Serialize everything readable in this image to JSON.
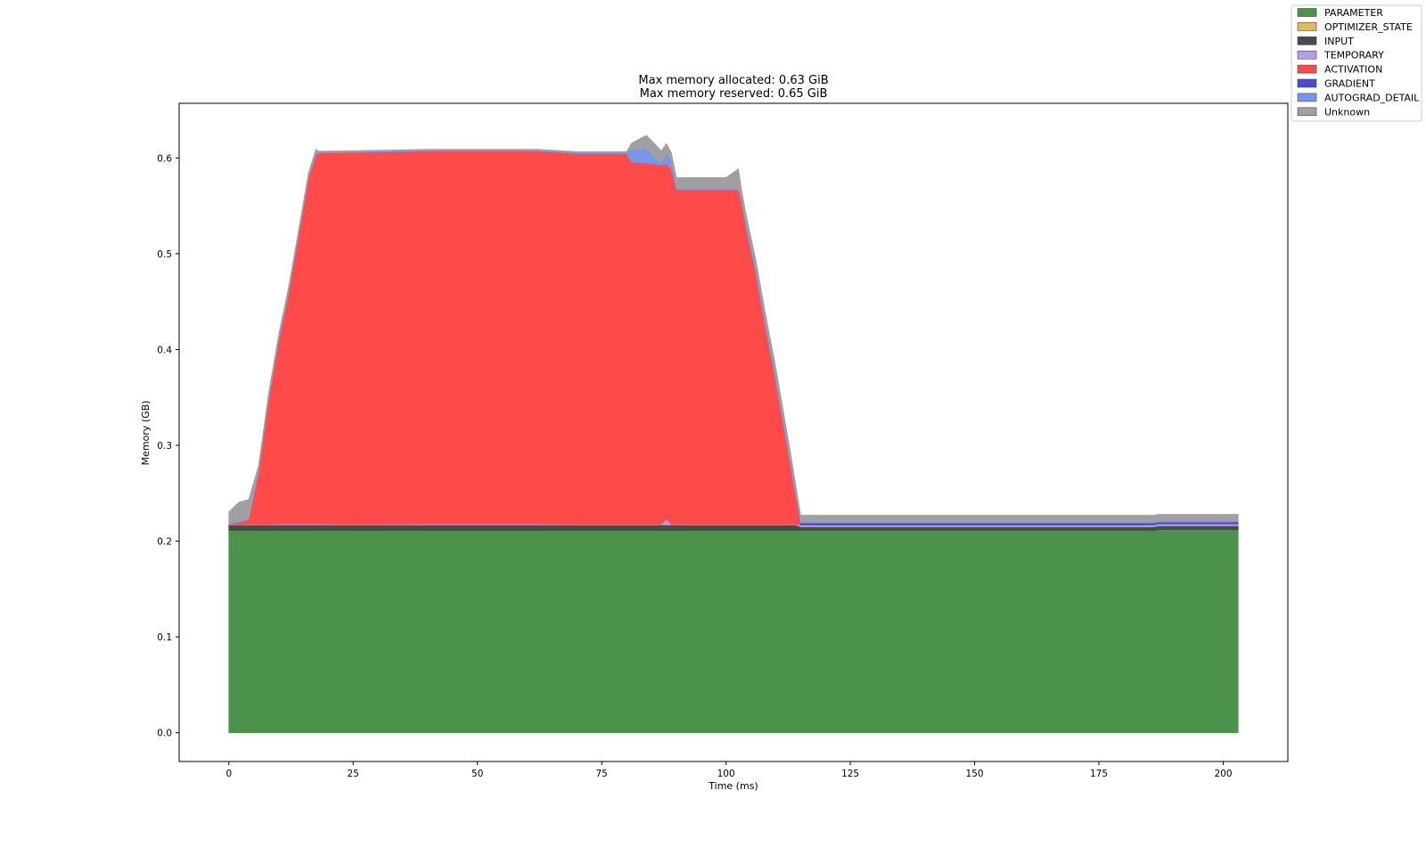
{
  "chart_data": {
    "type": "area",
    "stacked": true,
    "title_lines": [
      "Max memory allocated: 0.63 GiB",
      "Max memory reserved: 0.65 GiB"
    ],
    "xlabel": "Time (ms)",
    "ylabel": "Memory (GB)",
    "xlim": [
      -10,
      213
    ],
    "ylim": [
      -0.03,
      0.657
    ],
    "xticks": [
      0,
      25,
      50,
      75,
      100,
      125,
      150,
      175,
      200
    ],
    "yticks": [
      0.0,
      0.1,
      0.2,
      0.3,
      0.4,
      0.5,
      0.6
    ],
    "ytick_labels": [
      "0.0",
      "0.1",
      "0.2",
      "0.3",
      "0.4",
      "0.5",
      "0.6"
    ],
    "legend_position": "top-right",
    "x": [
      0,
      2,
      4,
      6,
      8,
      10,
      12,
      14,
      16,
      17.5,
      18,
      25,
      40,
      62,
      70,
      80,
      81,
      84,
      87,
      88,
      89,
      90,
      95,
      100,
      102.5,
      103,
      104,
      106,
      108,
      110,
      111,
      112,
      113,
      114,
      115,
      125,
      150,
      186,
      187,
      203
    ],
    "series": [
      {
        "name": "PARAMETER",
        "color": "#4b934b",
        "values": [
          0.211,
          0.211,
          0.211,
          0.211,
          0.211,
          0.211,
          0.211,
          0.211,
          0.211,
          0.211,
          0.211,
          0.211,
          0.211,
          0.211,
          0.211,
          0.211,
          0.211,
          0.211,
          0.211,
          0.211,
          0.211,
          0.211,
          0.211,
          0.211,
          0.211,
          0.211,
          0.211,
          0.211,
          0.211,
          0.211,
          0.211,
          0.211,
          0.211,
          0.211,
          0.211,
          0.211,
          0.211,
          0.211,
          0.212,
          0.212
        ]
      },
      {
        "name": "OPTIMIZER_STATE",
        "color": "#e6b955",
        "values": [
          0,
          0,
          0,
          0,
          0,
          0,
          0,
          0,
          0,
          0,
          0,
          0,
          0,
          0,
          0,
          0,
          0,
          0,
          0,
          0,
          0,
          0,
          0,
          0,
          0,
          0,
          0,
          0,
          0,
          0,
          0,
          0,
          0,
          0,
          0,
          0,
          0,
          0,
          0,
          0
        ]
      },
      {
        "name": "INPUT",
        "color": "#4a4a4a",
        "values": [
          0.006,
          0.006,
          0.006,
          0.006,
          0.006,
          0.006,
          0.006,
          0.006,
          0.006,
          0.006,
          0.006,
          0.006,
          0.006,
          0.006,
          0.006,
          0.006,
          0.006,
          0.006,
          0.006,
          0.006,
          0.006,
          0.006,
          0.006,
          0.006,
          0.006,
          0.006,
          0.006,
          0.006,
          0.006,
          0.006,
          0.006,
          0.006,
          0.006,
          0.006,
          0.004,
          0.004,
          0.004,
          0.004,
          0.004,
          0.004
        ]
      },
      {
        "name": "TEMPORARY",
        "color": "#b4a0e6",
        "values": [
          0.0005,
          0.0005,
          0.0005,
          0.0005,
          0.0005,
          0.001,
          0.001,
          0.001,
          0.001,
          0.001,
          0.001,
          0.0005,
          0.001,
          0.001,
          0.0005,
          0.0005,
          0.0005,
          0.0005,
          0.0005,
          0.006,
          0.0005,
          0.0005,
          0.0005,
          0.0005,
          0.0005,
          0.0005,
          0.0005,
          0.0005,
          0.0005,
          0.0005,
          0.0005,
          0.0005,
          0.0005,
          0.0005,
          0.002,
          0.002,
          0.002,
          0.002,
          0.002,
          0.002
        ]
      },
      {
        "name": "ACTIVATION",
        "color": "#ff4a4a",
        "values": [
          0,
          0.002,
          0.005,
          0.055,
          0.13,
          0.19,
          0.24,
          0.3,
          0.36,
          0.385,
          0.387,
          0.388,
          0.389,
          0.389,
          0.387,
          0.387,
          0.378,
          0.377,
          0.375,
          0.371,
          0.371,
          0.349,
          0.349,
          0.349,
          0.349,
          0.34,
          0.31,
          0.262,
          0.204,
          0.15,
          0.12,
          0.09,
          0.06,
          0.03,
          0,
          0,
          0,
          0,
          0,
          0
        ]
      },
      {
        "name": "GRADIENT",
        "color": "#4a4ad8",
        "values": [
          0,
          0,
          0,
          0,
          0,
          0,
          0,
          0,
          0,
          0,
          0,
          0,
          0,
          0,
          0,
          0,
          0,
          0,
          0,
          0,
          0,
          0,
          0,
          0,
          0,
          0,
          0,
          0,
          0,
          0,
          0,
          0,
          0,
          0,
          0.002,
          0.002,
          0.002,
          0.002,
          0.002,
          0.002
        ]
      },
      {
        "name": "AUTOGRAD_DETAIL",
        "color": "#7896e6",
        "values": [
          0.001,
          0.001,
          0.001,
          0.001,
          0.001,
          0.001,
          0.001,
          0.001,
          0.001,
          0.001,
          0.001,
          0.001,
          0.001,
          0.001,
          0.001,
          0.001,
          0.013,
          0.015,
          0.002,
          0.012,
          0.008,
          0.002,
          0.002,
          0.002,
          0.002,
          0.003,
          0.004,
          0.004,
          0.004,
          0.004,
          0.004,
          0.004,
          0.004,
          0.004,
          0.001,
          0.001,
          0.001,
          0.001,
          0.001,
          0.001
        ]
      },
      {
        "name": "Unknown",
        "color": "#a0a0a0",
        "values": [
          0.012,
          0.02,
          0.02,
          0.006,
          0.006,
          0.006,
          0.006,
          0.005,
          0.005,
          0.005,
          0.001,
          0.001,
          0.001,
          0.001,
          0.001,
          0.001,
          0.007,
          0.014,
          0.013,
          0.009,
          0.009,
          0.011,
          0.011,
          0.011,
          0.02,
          0.01,
          0.01,
          0.01,
          0.01,
          0.01,
          0.01,
          0.01,
          0.01,
          0.008,
          0.007,
          0.007,
          0.007,
          0.007,
          0.007,
          0.007
        ]
      }
    ]
  }
}
